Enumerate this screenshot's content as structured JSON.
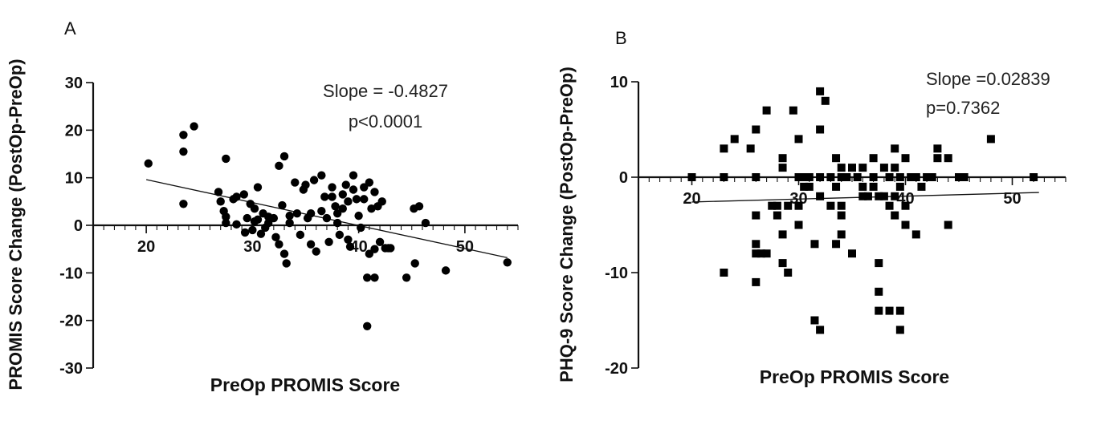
{
  "chart_data": [
    {
      "panel": "A",
      "type": "scatter",
      "marker": "circle",
      "xlabel": "PreOp PROMIS Score",
      "ylabel": "PROMIS Score Change (PostOp-PreOp)",
      "xlim": [
        15,
        55
      ],
      "ylim": [
        -30,
        30
      ],
      "xticks": [
        20,
        30,
        40,
        50
      ],
      "yticks": [
        30,
        20,
        10,
        0,
        -10,
        -20,
        -30
      ],
      "annotation": [
        "Slope = -0.4827",
        "p<0.0001"
      ],
      "fit_line": {
        "x": [
          20,
          54
        ],
        "y": [
          9.6,
          -6.8
        ]
      },
      "points": [
        [
          20.2,
          13
        ],
        [
          23.5,
          19
        ],
        [
          23.5,
          15.5
        ],
        [
          23.5,
          4.5
        ],
        [
          24.5,
          20.8
        ],
        [
          26.8,
          7
        ],
        [
          27,
          5
        ],
        [
          27.3,
          3
        ],
        [
          27.5,
          14
        ],
        [
          27.5,
          1.8
        ],
        [
          27.5,
          0.5
        ],
        [
          28.2,
          5.5
        ],
        [
          28.5,
          6
        ],
        [
          28.5,
          0.2
        ],
        [
          29.2,
          6.5
        ],
        [
          29.3,
          -1.5
        ],
        [
          29.5,
          1.5
        ],
        [
          29.8,
          4.5
        ],
        [
          30,
          -1
        ],
        [
          30.2,
          3.5
        ],
        [
          30.2,
          0.8
        ],
        [
          30.5,
          8
        ],
        [
          30.5,
          1.2
        ],
        [
          30.8,
          -1.8
        ],
        [
          31,
          2.5
        ],
        [
          31.2,
          -0.5
        ],
        [
          31.5,
          1.8
        ],
        [
          31.5,
          0.5
        ],
        [
          32,
          1.5
        ],
        [
          32.2,
          -2.5
        ],
        [
          32.5,
          12.5
        ],
        [
          32.5,
          -4
        ],
        [
          32.8,
          4.2
        ],
        [
          33,
          -6
        ],
        [
          33,
          14.5
        ],
        [
          33.2,
          -8
        ],
        [
          33.5,
          2
        ],
        [
          33.5,
          0.5
        ],
        [
          34,
          9
        ],
        [
          34.2,
          2.5
        ],
        [
          34.5,
          -2
        ],
        [
          34.8,
          7.5
        ],
        [
          35,
          8.5
        ],
        [
          35.2,
          1.5
        ],
        [
          35.5,
          -4
        ],
        [
          35.5,
          2.5
        ],
        [
          35.8,
          9.5
        ],
        [
          36,
          -5.5
        ],
        [
          36.5,
          10.5
        ],
        [
          36.5,
          3
        ],
        [
          36.8,
          6
        ],
        [
          37,
          1.5
        ],
        [
          37.2,
          -3.5
        ],
        [
          37.5,
          8
        ],
        [
          37.5,
          6
        ],
        [
          37.8,
          4
        ],
        [
          38,
          2.5
        ],
        [
          38,
          0.5
        ],
        [
          38.2,
          -2
        ],
        [
          38.5,
          6.5
        ],
        [
          38.5,
          3.5
        ],
        [
          38.8,
          8.5
        ],
        [
          39,
          5
        ],
        [
          39,
          -3
        ],
        [
          39.2,
          -4.5
        ],
        [
          39.5,
          10.5
        ],
        [
          39.5,
          7.5
        ],
        [
          39.8,
          5.5
        ],
        [
          40,
          2
        ],
        [
          40.2,
          -0.5
        ],
        [
          40.5,
          8
        ],
        [
          40.5,
          5.5
        ],
        [
          41,
          9
        ],
        [
          41,
          -6
        ],
        [
          41.2,
          3.5
        ],
        [
          41.5,
          7
        ],
        [
          41.5,
          -5
        ],
        [
          41.8,
          4
        ],
        [
          42,
          -3.5
        ],
        [
          42.2,
          5
        ],
        [
          42.5,
          -4.8
        ],
        [
          42.8,
          -4.8
        ],
        [
          43,
          -4.8
        ],
        [
          41.5,
          -11
        ],
        [
          40.8,
          -21.2
        ],
        [
          40.8,
          -11
        ],
        [
          44.5,
          -11
        ],
        [
          45.2,
          3.5
        ],
        [
          45.7,
          4
        ],
        [
          46.3,
          0.5
        ],
        [
          45.3,
          -8
        ],
        [
          48.2,
          -9.5
        ],
        [
          54,
          -7.8
        ]
      ]
    },
    {
      "panel": "B",
      "type": "scatter",
      "marker": "square",
      "xlabel": "PreOp PROMIS Score",
      "ylabel": "PHQ-9 Score Change (PostOp-PreOp)",
      "xlim": [
        15,
        55
      ],
      "ylim": [
        -20,
        10
      ],
      "xticks": [
        20,
        30,
        40,
        50
      ],
      "yticks": [
        10,
        0,
        -10,
        -20
      ],
      "annotation": [
        "Slope =0.02839",
        "p=0.7362"
      ],
      "fit_line": {
        "x": [
          20,
          52.5
        ],
        "y": [
          -2.6,
          -1.6
        ]
      },
      "points": [
        [
          20,
          0
        ],
        [
          23,
          3
        ],
        [
          23,
          0
        ],
        [
          23,
          -10
        ],
        [
          24,
          4
        ],
        [
          25.5,
          3
        ],
        [
          26,
          5
        ],
        [
          26,
          0
        ],
        [
          26,
          -4
        ],
        [
          26,
          -7
        ],
        [
          26,
          -8
        ],
        [
          26,
          -11
        ],
        [
          26.5,
          -8
        ],
        [
          27,
          7
        ],
        [
          27,
          -8
        ],
        [
          27.5,
          -3
        ],
        [
          28,
          -3
        ],
        [
          28,
          -4
        ],
        [
          28.5,
          2
        ],
        [
          28.5,
          1
        ],
        [
          28.5,
          -6
        ],
        [
          28.5,
          -9
        ],
        [
          29,
          -10
        ],
        [
          29,
          -3
        ],
        [
          29.5,
          7
        ],
        [
          30,
          4
        ],
        [
          30,
          0
        ],
        [
          30,
          -3
        ],
        [
          30,
          -5
        ],
        [
          30.5,
          0
        ],
        [
          30.5,
          -1
        ],
        [
          31,
          0
        ],
        [
          31,
          -1
        ],
        [
          31.5,
          -7
        ],
        [
          31.5,
          -15
        ],
        [
          32,
          9
        ],
        [
          32,
          5
        ],
        [
          32,
          0
        ],
        [
          32,
          -2
        ],
        [
          32,
          -16
        ],
        [
          32.5,
          8
        ],
        [
          33,
          0
        ],
        [
          33,
          -3
        ],
        [
          33.5,
          2
        ],
        [
          33.5,
          -1
        ],
        [
          33.5,
          -7
        ],
        [
          34,
          1
        ],
        [
          34,
          0
        ],
        [
          34,
          -3
        ],
        [
          34,
          -4
        ],
        [
          34,
          -6
        ],
        [
          34.5,
          0
        ],
        [
          35,
          1
        ],
        [
          35,
          -8
        ],
        [
          35.5,
          0
        ],
        [
          36,
          1
        ],
        [
          36,
          -1
        ],
        [
          36,
          -2
        ],
        [
          36.5,
          -2
        ],
        [
          37,
          2
        ],
        [
          37,
          0
        ],
        [
          37,
          -1
        ],
        [
          37.5,
          -2
        ],
        [
          37.5,
          -9
        ],
        [
          37.5,
          -12
        ],
        [
          37.5,
          -14
        ],
        [
          38,
          1
        ],
        [
          38,
          -2
        ],
        [
          38.5,
          0
        ],
        [
          38.5,
          -3
        ],
        [
          38.5,
          -14
        ],
        [
          39,
          3
        ],
        [
          39,
          1
        ],
        [
          39,
          -2
        ],
        [
          39,
          -4
        ],
        [
          39.5,
          0
        ],
        [
          39.5,
          -1
        ],
        [
          39.5,
          -14
        ],
        [
          39.5,
          -16
        ],
        [
          40,
          2
        ],
        [
          40,
          -3
        ],
        [
          40,
          -5
        ],
        [
          40.5,
          0
        ],
        [
          41,
          -6
        ],
        [
          41,
          0
        ],
        [
          41.5,
          -1
        ],
        [
          42,
          0
        ],
        [
          42.5,
          0
        ],
        [
          43,
          2
        ],
        [
          43,
          3
        ],
        [
          44,
          2
        ],
        [
          44,
          -5
        ],
        [
          45,
          0
        ],
        [
          45.5,
          0
        ],
        [
          48,
          4
        ],
        [
          52,
          0
        ]
      ]
    }
  ]
}
